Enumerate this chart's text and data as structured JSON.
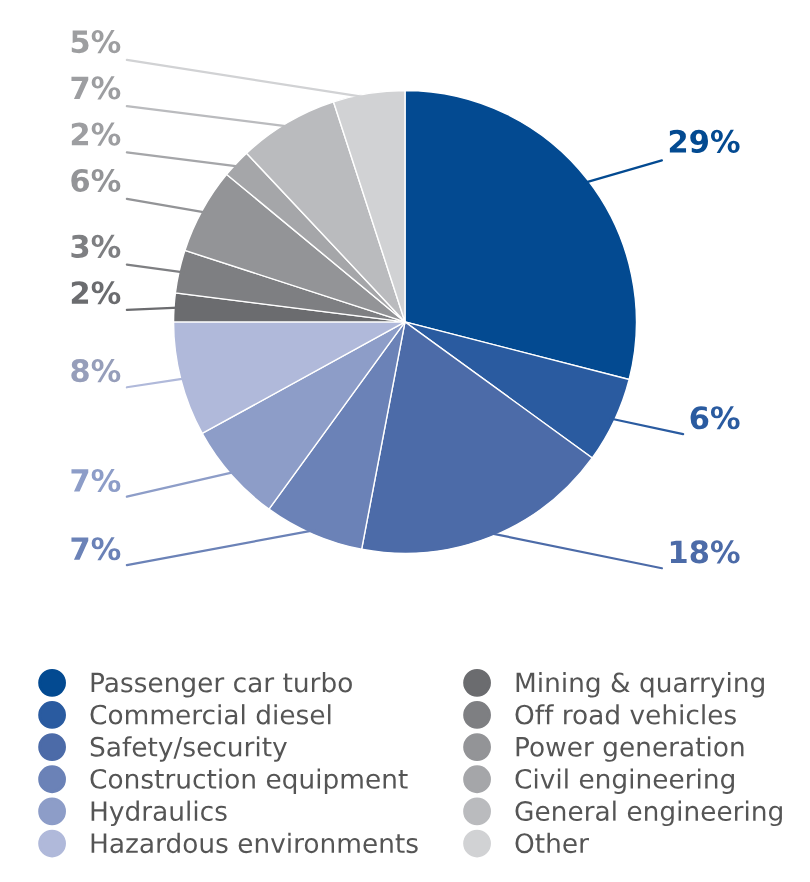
{
  "chart_data": {
    "type": "pie",
    "categories": [
      "Passenger car turbo",
      "Commercial diesel",
      "Safety/security",
      "Construction equipment",
      "Hydraulics",
      "Hazardous environments",
      "Mining & quarrying",
      "Off road vehicles",
      "Power generation",
      "Civil engineering",
      "General engineering",
      "Other"
    ],
    "values": [
      29,
      6,
      18,
      7,
      7,
      8,
      2,
      3,
      6,
      2,
      7,
      5
    ],
    "colors": [
      "#034a91",
      "#2a5ba0",
      "#4c6ba8",
      "#6b82b7",
      "#8d9dc8",
      "#b0b9da",
      "#6b6c6f",
      "#7e7f82",
      "#939497",
      "#a5a6a9",
      "#babbbe",
      "#d1d2d4"
    ],
    "value_labels": [
      "29%",
      "6%",
      "18%",
      "7%",
      "7%",
      "8%",
      "2%",
      "3%",
      "6%",
      "2%",
      "7%",
      "5%"
    ],
    "legend": "bottom"
  }
}
